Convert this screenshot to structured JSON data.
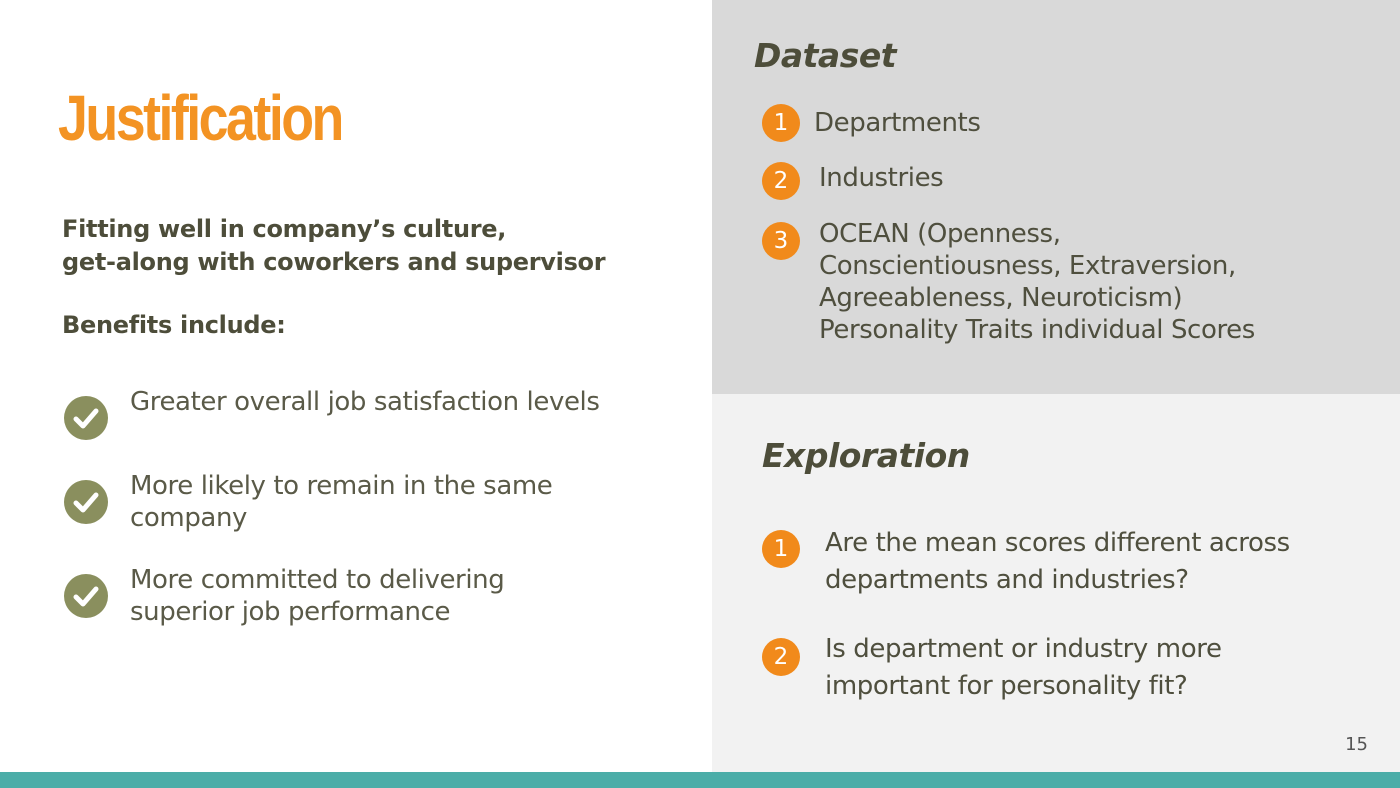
{
  "slide": {
    "title": "Justification",
    "subtitle": "Fitting well in company’s culture,\nget-along with coworkers and supervisor",
    "benefits_heading": "Benefits include:",
    "benefits": [
      "Greater overall job satisfaction levels",
      "More likely to remain in the same company",
      "More committed to delivering superior job performance"
    ],
    "dataset": {
      "title": "Dataset",
      "items": [
        {
          "number": "1",
          "text": "Departments"
        },
        {
          "number": "2",
          "text": "Industries"
        },
        {
          "number": "3",
          "text": "OCEAN (Openness, Conscientiousness, Extraversion, Agreeableness, Neuroticism) Personality Traits individual Scores"
        }
      ]
    },
    "exploration": {
      "title": "Exploration",
      "items": [
        {
          "number": "1",
          "text": "Are the mean scores different across departments and industries?"
        },
        {
          "number": "2",
          "text": "Is department or industry more important for personality fit?"
        }
      ]
    },
    "page_number": "15",
    "colors": {
      "accent_orange": "#f39323",
      "teal_bar": "#4bada8",
      "check_olive": "#8a8f5e"
    }
  }
}
